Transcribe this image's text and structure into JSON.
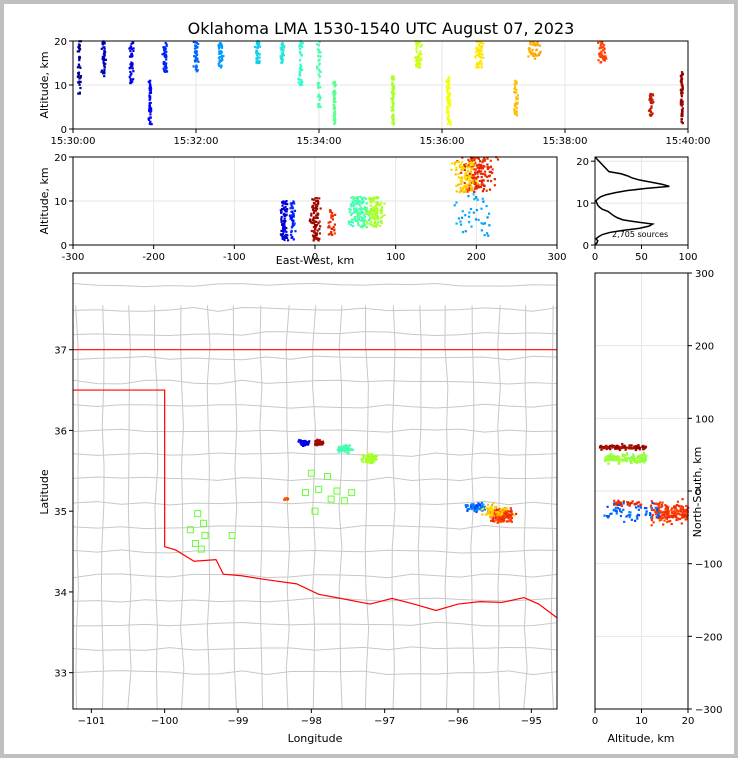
{
  "title": "Oklahoma LMA 1530-1540 UTC August 07, 2023",
  "colors": {
    "time_scale": [
      "#00008b",
      "#0000ff",
      "#00aaff",
      "#33ffcc",
      "#99ff33",
      "#ffff00",
      "#ffaa00",
      "#ff3300",
      "#8b0000"
    ],
    "border": "#ff0000",
    "county": "#c8c8c8",
    "station": "#66ff33",
    "grid": "#e6e6e6"
  },
  "chart_data": [
    {
      "type": "scatter",
      "id": "time_height",
      "xlabel": "",
      "ylabel": "Altitude, km",
      "x_ticks": [
        "15:30:00",
        "15:32:00",
        "15:34:00",
        "15:36:00",
        "15:38:00",
        "15:40:00"
      ],
      "y_ticks": [
        "0",
        "10",
        "20"
      ],
      "xlim": [
        "15:30:00",
        "15:40:00"
      ],
      "ylim": [
        0,
        20
      ],
      "grid": true,
      "color_by": "time",
      "clusters": [
        {
          "t_min": 0.1,
          "t_spread": 0.05,
          "alt_min": 8,
          "alt_max": 20,
          "n": 40
        },
        {
          "t_min": 0.5,
          "t_spread": 0.05,
          "alt_min": 12,
          "alt_max": 20,
          "n": 40
        },
        {
          "t_min": 0.95,
          "t_spread": 0.05,
          "alt_min": 10,
          "alt_max": 20,
          "n": 40
        },
        {
          "t_min": 1.25,
          "t_spread": 0.03,
          "alt_min": 1,
          "alt_max": 11,
          "n": 50
        },
        {
          "t_min": 1.5,
          "t_spread": 0.05,
          "alt_min": 13,
          "alt_max": 20,
          "n": 40
        },
        {
          "t_min": 2.0,
          "t_spread": 0.05,
          "alt_min": 13,
          "alt_max": 20,
          "n": 40
        },
        {
          "t_min": 2.4,
          "t_spread": 0.05,
          "alt_min": 14,
          "alt_max": 20,
          "n": 40
        },
        {
          "t_min": 3.0,
          "t_spread": 0.05,
          "alt_min": 15,
          "alt_max": 20,
          "n": 40
        },
        {
          "t_min": 3.4,
          "t_spread": 0.05,
          "alt_min": 15,
          "alt_max": 20,
          "n": 40
        },
        {
          "t_min": 3.7,
          "t_spread": 0.05,
          "alt_min": 10,
          "alt_max": 20,
          "n": 40
        },
        {
          "t_min": 4.0,
          "t_spread": 0.05,
          "alt_min": 5,
          "alt_max": 20,
          "n": 40
        },
        {
          "t_min": 4.25,
          "t_spread": 0.03,
          "alt_min": 1,
          "alt_max": 12,
          "n": 60
        },
        {
          "t_min": 5.2,
          "t_spread": 0.03,
          "alt_min": 1,
          "alt_max": 12,
          "n": 60
        },
        {
          "t_min": 5.6,
          "t_spread": 0.1,
          "alt_min": 14,
          "alt_max": 20,
          "n": 50
        },
        {
          "t_min": 6.1,
          "t_spread": 0.05,
          "alt_min": 1,
          "alt_max": 12,
          "n": 60
        },
        {
          "t_min": 6.6,
          "t_spread": 0.1,
          "alt_min": 14,
          "alt_max": 20,
          "n": 50
        },
        {
          "t_min": 7.2,
          "t_spread": 0.05,
          "alt_min": 3,
          "alt_max": 11,
          "n": 40
        },
        {
          "t_min": 7.5,
          "t_spread": 0.15,
          "alt_min": 16,
          "alt_max": 20,
          "n": 40
        },
        {
          "t_min": 8.6,
          "t_spread": 0.1,
          "alt_min": 15,
          "alt_max": 20,
          "n": 40
        },
        {
          "t_min": 9.4,
          "t_spread": 0.05,
          "alt_min": 3,
          "alt_max": 8,
          "n": 30
        },
        {
          "t_min": 9.9,
          "t_spread": 0.03,
          "alt_min": 1,
          "alt_max": 13,
          "n": 60
        }
      ]
    },
    {
      "type": "scatter",
      "id": "ew_alt",
      "xlabel": "East-West, km",
      "ylabel": "Altitude, km",
      "x_ticks": [
        "-300",
        "-200",
        "-100",
        "0",
        "100",
        "200",
        "300"
      ],
      "y_ticks": [
        "0",
        "10",
        "20"
      ],
      "xlim": [
        -300,
        300
      ],
      "ylim": [
        0,
        20
      ],
      "grid": true,
      "clusters": [
        {
          "x": -38,
          "x_spread": 6,
          "alt_min": 1,
          "alt_max": 10,
          "time_frac": 0.08,
          "n": 80
        },
        {
          "x": -28,
          "x_spread": 6,
          "alt_min": 1,
          "alt_max": 10,
          "time_frac": 0.15,
          "n": 40
        },
        {
          "x": 0,
          "x_spread": 10,
          "alt_min": 1,
          "alt_max": 11,
          "time_frac": 0.98,
          "n": 90
        },
        {
          "x": 20,
          "x_spread": 6,
          "alt_min": 2,
          "alt_max": 8,
          "time_frac": 0.9,
          "n": 30
        },
        {
          "x": 55,
          "x_spread": 18,
          "alt_min": 4,
          "alt_max": 11,
          "time_frac": 0.4,
          "n": 130
        },
        {
          "x": 75,
          "x_spread": 15,
          "alt_min": 4,
          "alt_max": 11,
          "time_frac": 0.52,
          "n": 110
        },
        {
          "x": 200,
          "x_spread": 30,
          "alt_min": 12,
          "alt_max": 20,
          "time_frac": 0.9,
          "n": 160
        },
        {
          "x": 185,
          "x_spread": 20,
          "alt_min": 12,
          "alt_max": 19,
          "time_frac": 0.7,
          "n": 90
        },
        {
          "x": 195,
          "x_spread": 40,
          "alt_min": 2,
          "alt_max": 12,
          "time_frac": 0.25,
          "n": 40
        }
      ]
    },
    {
      "type": "line",
      "id": "alt_histogram",
      "annotation": "2,705 sources",
      "x_ticks": [
        "0",
        "50",
        "100"
      ],
      "y_ticks": [
        "0",
        "10",
        "20"
      ],
      "xlim": [
        0,
        100
      ],
      "ylim": [
        0,
        21
      ],
      "grid": true,
      "x": [
        0,
        2,
        3,
        1,
        4,
        8,
        16,
        30,
        48,
        58,
        62,
        45,
        30,
        24,
        20,
        17,
        14,
        8,
        5,
        3,
        2,
        1,
        3,
        6,
        12,
        22,
        35,
        55,
        80,
        72,
        60,
        48,
        40,
        35,
        28,
        15,
        0
      ],
      "y": [
        0,
        0.5,
        1,
        1.5,
        2,
        2.5,
        3,
        3.5,
        4,
        4.5,
        5,
        5.5,
        6,
        6.5,
        7,
        7.5,
        8,
        8.5,
        9,
        9.5,
        10,
        10.5,
        11,
        11.5,
        12,
        12.5,
        13,
        13.5,
        14,
        14.5,
        15,
        15.5,
        16,
        16.5,
        17,
        17.5,
        21
      ]
    },
    {
      "type": "scatter",
      "id": "plan_view",
      "xlabel": "Longitude",
      "ylabel": "Latitude",
      "x_ticks": [
        "−101",
        "−100",
        "−99",
        "−98",
        "−97",
        "−96",
        "−95"
      ],
      "y_ticks": [
        "33",
        "34",
        "35",
        "36",
        "37"
      ],
      "xlim": [
        -101.25,
        -94.65
      ],
      "ylim": [
        32.55,
        37.95
      ],
      "grid": false,
      "clusters": [
        {
          "lon": -98.1,
          "lat": 35.85,
          "lon_spread": 0.1,
          "lat_spread": 0.05,
          "time_frac": 0.1,
          "n": 70
        },
        {
          "lon": -97.9,
          "lat": 35.85,
          "lon_spread": 0.08,
          "lat_spread": 0.04,
          "time_frac": 0.98,
          "n": 70
        },
        {
          "lon": -97.55,
          "lat": 35.77,
          "lon_spread": 0.15,
          "lat_spread": 0.06,
          "time_frac": 0.4,
          "n": 90
        },
        {
          "lon": -97.2,
          "lat": 35.65,
          "lon_spread": 0.15,
          "lat_spread": 0.08,
          "time_frac": 0.52,
          "n": 80
        },
        {
          "lon": -98.35,
          "lat": 35.15,
          "lon_spread": 0.04,
          "lat_spread": 0.02,
          "time_frac": 0.85,
          "n": 15
        },
        {
          "lon": -95.75,
          "lat": 35.05,
          "lon_spread": 0.25,
          "lat_spread": 0.08,
          "time_frac": 0.2,
          "n": 60
        },
        {
          "lon": -95.4,
          "lat": 34.95,
          "lon_spread": 0.25,
          "lat_spread": 0.12,
          "time_frac": 0.88,
          "n": 140
        },
        {
          "lon": -95.5,
          "lat": 35.0,
          "lon_spread": 0.3,
          "lat_spread": 0.12,
          "time_frac": 0.7,
          "n": 50
        }
      ],
      "stations": [
        {
          "lon": -99.55,
          "lat": 34.97
        },
        {
          "lon": -99.47,
          "lat": 34.85
        },
        {
          "lon": -99.65,
          "lat": 34.77
        },
        {
          "lon": -99.45,
          "lat": 34.7
        },
        {
          "lon": -99.58,
          "lat": 34.6
        },
        {
          "lon": -99.5,
          "lat": 34.53
        },
        {
          "lon": -99.08,
          "lat": 34.7
        },
        {
          "lon": -98.0,
          "lat": 35.47
        },
        {
          "lon": -98.08,
          "lat": 35.23
        },
        {
          "lon": -97.9,
          "lat": 35.27
        },
        {
          "lon": -97.78,
          "lat": 35.43
        },
        {
          "lon": -97.73,
          "lat": 35.15
        },
        {
          "lon": -97.65,
          "lat": 35.25
        },
        {
          "lon": -97.55,
          "lat": 35.13
        },
        {
          "lon": -97.45,
          "lat": 35.23
        },
        {
          "lon": -97.95,
          "lat": 35.0
        }
      ]
    },
    {
      "type": "scatter",
      "id": "alt_ns",
      "xlabel": "Altitude, km",
      "ylabel": "North-South, km",
      "x_ticks": [
        "0",
        "10",
        "20"
      ],
      "y_ticks": [
        "300",
        "200",
        "100",
        "0",
        "−100",
        "−200",
        "−300"
      ],
      "xlim": [
        0,
        20
      ],
      "ylim": [
        -300,
        300
      ],
      "grid": true,
      "clusters": [
        {
          "alt_min": 1,
          "alt_max": 11,
          "ns": 60,
          "ns_spread": 5,
          "time_frac": 0.98,
          "n": 100
        },
        {
          "alt_min": 2,
          "alt_max": 11,
          "ns": 45,
          "ns_spread": 10,
          "time_frac": 0.5,
          "n": 130
        },
        {
          "alt_min": 4,
          "alt_max": 10,
          "ns": -17,
          "ns_spread": 5,
          "time_frac": 0.9,
          "n": 40
        },
        {
          "alt_min": 12,
          "alt_max": 20,
          "ns": -30,
          "ns_spread": 20,
          "time_frac": 0.88,
          "n": 180
        },
        {
          "alt_min": 2,
          "alt_max": 14,
          "ns": -30,
          "ns_spread": 15,
          "time_frac": 0.2,
          "n": 60
        }
      ]
    }
  ]
}
